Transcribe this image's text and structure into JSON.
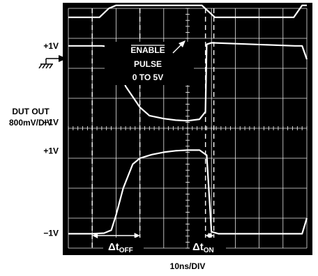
{
  "chart_data": {
    "type": "line",
    "title": "",
    "xlabel": "10ns/DIV",
    "ylabel_name": "DUT OUT",
    "ylabel_scale": "800mV/DIV",
    "x_divisions": 10,
    "y_divisions": 8,
    "x_unit": "div (10ns/DIV)",
    "y_unit": "div",
    "grid": true,
    "left_labels": [
      {
        "text": "+1V",
        "level_div": 6.75
      },
      {
        "text": "−1V",
        "level_div": 4.2
      },
      {
        "text": "+1V",
        "level_div": 3.25
      },
      {
        "text": "−1V",
        "level_div": 0.5
      }
    ],
    "annotations": {
      "enable_line1": "ENABLE",
      "enable_line2": "PULSE",
      "enable_line3": "0 TO 5V",
      "toff_delta": "Δt",
      "toff_sub": "OFF",
      "ton_delta": "Δt",
      "ton_sub": "ON"
    },
    "series": [
      {
        "x": [
          0,
          1.0,
          1.3,
          1.7,
          2.0,
          5.6,
          5.8,
          6.15,
          6.5,
          9.2,
          9.45,
          9.8,
          10
        ],
        "y": [
          7.7,
          7.7,
          7.7,
          8.0,
          8.1,
          8.1,
          7.95,
          7.7,
          7.7,
          7.7,
          7.7,
          8.1,
          8.1
        ]
      },
      {
        "x": [
          0,
          1.0,
          1.4,
          1.7,
          2.0,
          2.4,
          3.0,
          3.4,
          4.0,
          4.5,
          5.0,
          5.5,
          5.75,
          5.8,
          6.0,
          9.5,
          9.8,
          10
        ],
        "y": [
          6.75,
          6.75,
          6.75,
          6.72,
          6.4,
          5.4,
          4.7,
          4.42,
          4.32,
          4.27,
          4.25,
          4.3,
          4.55,
          6.8,
          6.85,
          6.75,
          6.75,
          6.3
        ]
      },
      {
        "x": [
          0,
          1.0,
          1.5,
          1.8,
          2.0,
          2.3,
          2.7,
          3.0,
          3.5,
          4.0,
          4.5,
          5.0,
          5.5,
          5.8,
          6.0,
          6.3,
          9.5,
          9.8,
          10
        ],
        "y": [
          0.48,
          0.48,
          0.5,
          0.6,
          1.1,
          2.0,
          2.8,
          3.0,
          3.12,
          3.2,
          3.25,
          3.27,
          3.27,
          3.1,
          0.55,
          0.48,
          0.48,
          0.48,
          1.0
        ]
      }
    ],
    "markers": {
      "dashed_vertical_x": [
        1.0,
        3.0,
        5.75,
        6.1
      ],
      "toff_arrow_x": [
        1.0,
        3.0
      ],
      "ton_arrow_x": [
        5.75,
        6.1
      ]
    }
  }
}
